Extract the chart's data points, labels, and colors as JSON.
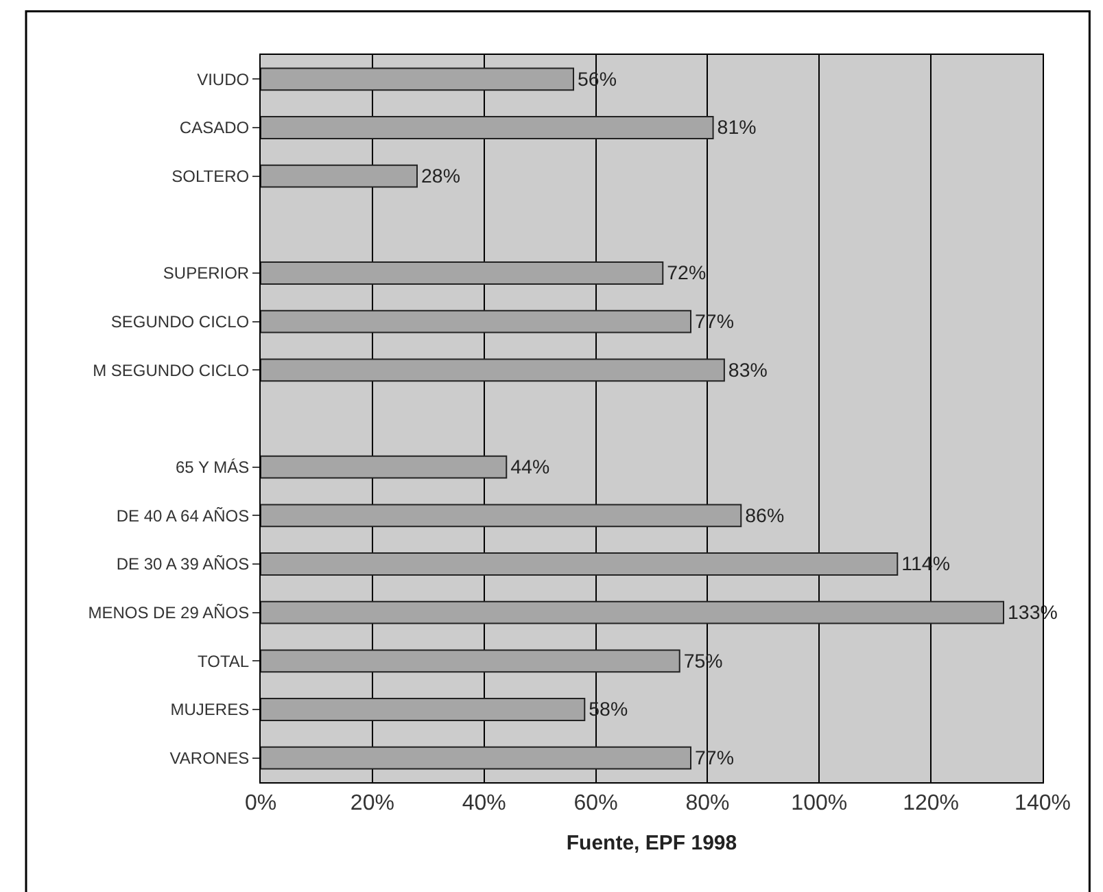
{
  "chart_data": {
    "type": "bar",
    "orientation": "horizontal",
    "xlabel": "Fuente, EPF 1998",
    "categories": [
      "VIUDO",
      "CASADO",
      "SOLTERO",
      null,
      "SUPERIOR",
      "SEGUNDO CICLO",
      "M SEGUNDO CICLO",
      null,
      "65 Y MÁS",
      "DE 40 A 64 AÑOS",
      "DE 30 A 39 AÑOS",
      "MENOS DE 29 AÑOS",
      "TOTAL",
      "MUJERES",
      "VARONES"
    ],
    "values": [
      56,
      81,
      28,
      null,
      72,
      77,
      83,
      null,
      44,
      86,
      114,
      133,
      75,
      58,
      77
    ],
    "value_labels": [
      "56%",
      "81%",
      "28%",
      null,
      "72%",
      "77%",
      "83%",
      null,
      "44%",
      "86%",
      "114%",
      "133%",
      "75%",
      "58%",
      "77%"
    ],
    "color": "#a6a6a6",
    "xlim": [
      0,
      140
    ],
    "xticks": [
      {
        "value": 0,
        "label": "0%"
      },
      {
        "value": 20,
        "label": "20%"
      },
      {
        "value": 40,
        "label": "40%"
      },
      {
        "value": 60,
        "label": "60%"
      },
      {
        "value": 80,
        "label": "80%"
      },
      {
        "value": 100,
        "label": "100%"
      },
      {
        "value": 120,
        "label": "120%"
      },
      {
        "value": 140,
        "label": "140%"
      }
    ],
    "grid": "x",
    "legend": false
  }
}
